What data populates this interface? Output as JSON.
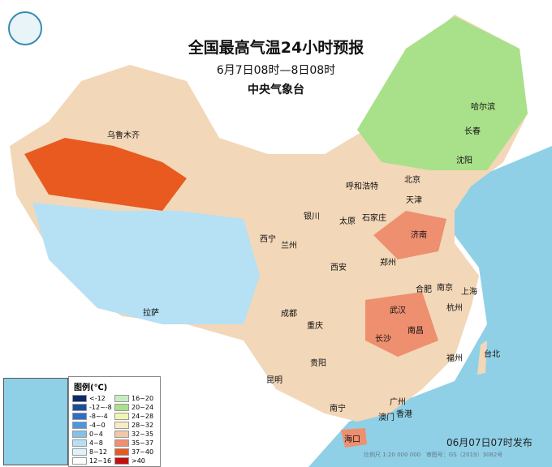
{
  "header": {
    "title": "全国最高气温24小时预报",
    "period": "6月7日08时—8日08时",
    "agency": "中央气象台"
  },
  "cities": [
    "乌鲁木齐",
    "哈尔滨",
    "长春",
    "沈阳",
    "北京",
    "天津",
    "呼和浩特",
    "石家庄",
    "太原",
    "济南",
    "银川",
    "西宁",
    "兰州",
    "郑州",
    "西安",
    "合肥",
    "南京",
    "上海",
    "杭州",
    "武汉",
    "成都",
    "拉萨",
    "重庆",
    "长沙",
    "南昌",
    "福州",
    "台北",
    "贵阳",
    "昆明",
    "南宁",
    "广州",
    "澳门",
    "香港",
    "海口"
  ],
  "legend": {
    "title": "图例(℃)",
    "items": [
      {
        "label": "<-12",
        "color": "#0b2a6b"
      },
      {
        "label": "16~20",
        "color": "#c8ecc0"
      },
      {
        "label": "-12~-8",
        "color": "#1d4d9a"
      },
      {
        "label": "20~24",
        "color": "#a9e08a"
      },
      {
        "label": "-8~-4",
        "color": "#2e6fc4"
      },
      {
        "label": "24~28",
        "color": "#f2f5b0"
      },
      {
        "label": "-4~0",
        "color": "#4f95dc"
      },
      {
        "label": "28~32",
        "color": "#f8ecc8"
      },
      {
        "label": "0~4",
        "color": "#86c1ea"
      },
      {
        "label": "32~35",
        "color": "#f4c7a6"
      },
      {
        "label": "4~8",
        "color": "#b6e0f4"
      },
      {
        "label": "35~37",
        "color": "#ee8f70"
      },
      {
        "label": "8~12",
        "color": "#def3fb"
      },
      {
        "label": "37~40",
        "color": "#e85a20"
      },
      {
        "label": "12~16",
        "color": "#ffffff"
      },
      {
        "label": ">40",
        "color": "#c01010"
      }
    ]
  },
  "footer": {
    "issued": "06月07日07时发布",
    "scale": "比例尺 1:20 000 000",
    "approval": "审图号：GS（2019）3082号"
  },
  "colors": {
    "sea": "#8fd0e6",
    "hot": "#e85a20",
    "warm": "#f4c7a6",
    "cool": "#b6e0f4",
    "mild": "#a9e08a"
  }
}
